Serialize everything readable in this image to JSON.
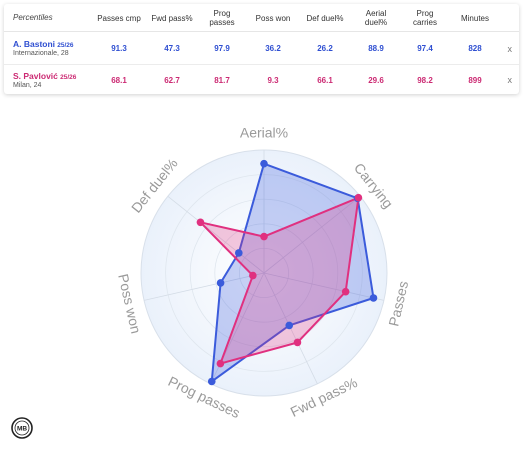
{
  "table": {
    "percentiles_label": "Percentiles",
    "columns": [
      "Passes cmp",
      "Fwd pass%",
      "Prog passes",
      "Poss won",
      "Def duel%",
      "Aerial duel%",
      "Prog carries",
      "Minutes"
    ],
    "players": [
      {
        "name": "A. Bastoni",
        "season": "25/26",
        "sub": "Internazionale, 28",
        "values": [
          "91.3",
          "47.3",
          "97.9",
          "36.2",
          "26.2",
          "88.9",
          "97.4",
          "828"
        ],
        "color": "#2f4fd1",
        "remove": "x"
      },
      {
        "name": "S. Pavlović",
        "season": "25/26",
        "sub": "Milan, 24",
        "values": [
          "68.1",
          "62.7",
          "81.7",
          "9.3",
          "66.1",
          "29.6",
          "98.2",
          "899"
        ],
        "color": "#cc2a73",
        "remove": "x"
      }
    ]
  },
  "chart_data": {
    "type": "radar",
    "axes": [
      "Aerial%",
      "Carrying",
      "Passes",
      "Fwd pass%",
      "Prog passes",
      "Poss won",
      "Def duel%"
    ],
    "rlim": [
      0,
      100
    ],
    "series": [
      {
        "values": [
          88.9,
          97.4,
          91.3,
          47.3,
          97.9,
          36.2,
          26.2
        ],
        "color": "#3b5bdb"
      },
      {
        "values": [
          29.6,
          98.2,
          68.1,
          62.7,
          81.7,
          9.3,
          66.1
        ],
        "color": "#e0307f"
      }
    ],
    "grid": true
  },
  "logo": {
    "text": "MB"
  }
}
